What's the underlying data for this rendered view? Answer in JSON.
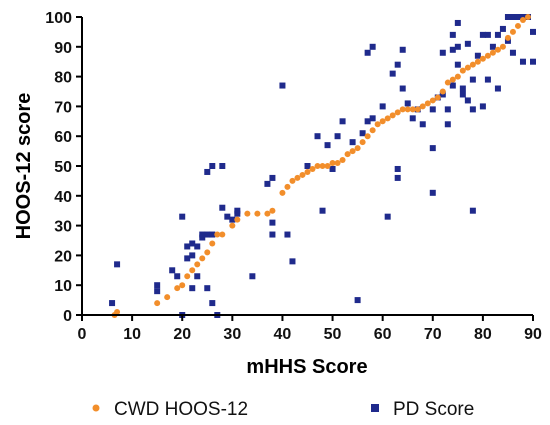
{
  "chart_data": {
    "type": "scatter",
    "xlabel": "mHHS Score",
    "ylabel": "HOOS-12 score",
    "xlim": [
      0,
      90
    ],
    "ylim": [
      0,
      100
    ],
    "x_ticks": [
      0,
      10,
      20,
      30,
      40,
      50,
      60,
      70,
      80,
      90
    ],
    "y_ticks": [
      0,
      10,
      20,
      30,
      40,
      50,
      60,
      70,
      80,
      90,
      100
    ],
    "legend_position": "bottom",
    "grid": false,
    "series": [
      {
        "name": "CWD HOOS-12",
        "color": "#f28e2b",
        "marker": "circle",
        "points": [
          [
            6.5,
            0
          ],
          [
            7,
            1
          ],
          [
            15,
            4
          ],
          [
            17,
            6
          ],
          [
            19,
            9
          ],
          [
            20,
            10
          ],
          [
            21,
            13
          ],
          [
            22,
            15
          ],
          [
            23,
            17
          ],
          [
            24,
            19
          ],
          [
            25,
            21
          ],
          [
            26,
            24
          ],
          [
            27,
            27
          ],
          [
            28,
            27
          ],
          [
            30,
            30
          ],
          [
            31,
            32
          ],
          [
            33,
            34
          ],
          [
            35,
            34
          ],
          [
            37,
            34
          ],
          [
            38,
            35
          ],
          [
            40,
            41
          ],
          [
            41,
            43
          ],
          [
            42,
            45
          ],
          [
            43,
            46
          ],
          [
            44,
            47
          ],
          [
            45,
            48
          ],
          [
            46,
            49
          ],
          [
            47,
            50
          ],
          [
            48,
            50
          ],
          [
            49,
            50
          ],
          [
            50,
            51
          ],
          [
            51,
            51
          ],
          [
            52,
            52
          ],
          [
            53,
            54
          ],
          [
            54,
            55
          ],
          [
            55,
            56
          ],
          [
            56,
            58
          ],
          [
            57,
            60
          ],
          [
            58,
            62
          ],
          [
            59,
            64
          ],
          [
            60,
            65
          ],
          [
            61,
            66
          ],
          [
            62,
            67
          ],
          [
            63,
            68
          ],
          [
            64,
            69
          ],
          [
            65,
            69
          ],
          [
            66,
            69
          ],
          [
            67,
            69
          ],
          [
            68,
            70
          ],
          [
            69,
            71
          ],
          [
            70,
            72
          ],
          [
            71,
            73
          ],
          [
            72,
            75
          ],
          [
            73,
            78
          ],
          [
            74,
            79
          ],
          [
            75,
            80
          ],
          [
            76,
            82
          ],
          [
            77,
            83
          ],
          [
            78,
            84
          ],
          [
            79,
            85
          ],
          [
            80,
            86
          ],
          [
            81,
            87
          ],
          [
            82,
            88
          ],
          [
            83,
            89
          ],
          [
            84,
            90
          ],
          [
            85,
            93
          ],
          [
            86,
            95
          ],
          [
            87,
            97
          ],
          [
            88,
            99
          ],
          [
            89,
            100
          ]
        ]
      },
      {
        "name": "PD Score",
        "color": "#1f2a8c",
        "marker": "square",
        "points": [
          [
            6,
            4
          ],
          [
            7,
            17
          ],
          [
            15,
            8
          ],
          [
            15,
            10
          ],
          [
            18,
            15
          ],
          [
            19,
            13
          ],
          [
            20,
            33
          ],
          [
            20,
            0
          ],
          [
            21,
            19
          ],
          [
            21,
            23
          ],
          [
            22,
            20
          ],
          [
            22,
            24
          ],
          [
            22,
            9
          ],
          [
            23,
            23
          ],
          [
            23,
            13
          ],
          [
            24,
            26
          ],
          [
            24,
            27
          ],
          [
            25,
            27
          ],
          [
            25,
            48
          ],
          [
            25,
            9
          ],
          [
            26,
            50
          ],
          [
            26,
            4
          ],
          [
            26,
            27
          ],
          [
            27,
            0
          ],
          [
            28,
            50
          ],
          [
            28,
            36
          ],
          [
            29,
            33
          ],
          [
            30,
            32
          ],
          [
            31,
            35
          ],
          [
            31,
            34
          ],
          [
            34,
            13
          ],
          [
            37,
            44
          ],
          [
            38,
            46
          ],
          [
            38,
            27
          ],
          [
            38,
            31
          ],
          [
            40,
            77
          ],
          [
            41,
            27
          ],
          [
            42,
            18
          ],
          [
            45,
            50
          ],
          [
            47,
            60
          ],
          [
            48,
            35
          ],
          [
            49,
            57
          ],
          [
            50,
            49
          ],
          [
            51,
            60
          ],
          [
            52,
            65
          ],
          [
            54,
            58
          ],
          [
            55,
            5
          ],
          [
            56,
            61
          ],
          [
            57,
            88
          ],
          [
            57,
            65
          ],
          [
            58,
            90
          ],
          [
            58,
            66
          ],
          [
            60,
            70
          ],
          [
            61,
            33
          ],
          [
            62,
            81
          ],
          [
            63,
            49
          ],
          [
            63,
            46
          ],
          [
            63,
            84
          ],
          [
            64,
            89
          ],
          [
            64,
            76
          ],
          [
            65,
            71
          ],
          [
            66,
            66
          ],
          [
            67,
            69
          ],
          [
            68,
            64
          ],
          [
            70,
            41
          ],
          [
            70,
            56
          ],
          [
            71,
            73
          ],
          [
            72,
            88
          ],
          [
            72,
            74
          ],
          [
            73,
            64
          ],
          [
            73,
            69
          ],
          [
            74,
            89
          ],
          [
            74,
            94
          ],
          [
            74,
            77
          ],
          [
            75,
            90
          ],
          [
            75,
            98
          ],
          [
            75,
            84
          ],
          [
            76,
            74
          ],
          [
            76,
            76
          ],
          [
            77,
            72
          ],
          [
            77,
            91
          ],
          [
            78,
            35
          ],
          [
            78,
            69
          ],
          [
            78,
            79
          ],
          [
            79,
            87
          ],
          [
            80,
            94
          ],
          [
            81,
            94
          ],
          [
            81,
            79
          ],
          [
            82,
            90
          ],
          [
            83,
            76
          ],
          [
            83,
            94
          ],
          [
            84,
            96
          ],
          [
            85,
            100
          ],
          [
            86,
            100
          ],
          [
            86,
            88
          ],
          [
            87,
            100
          ],
          [
            88,
            100
          ],
          [
            88,
            85
          ],
          [
            89,
            100
          ],
          [
            90,
            95
          ],
          [
            90,
            85
          ],
          [
            85,
            92
          ],
          [
            80,
            70
          ],
          [
            70,
            69
          ]
        ]
      }
    ]
  }
}
